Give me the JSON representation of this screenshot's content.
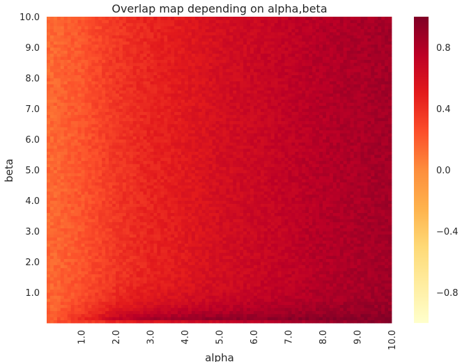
{
  "chart_data": {
    "type": "heatmap",
    "title": "Overlap map depending on alpha,beta",
    "xlabel": "alpha",
    "ylabel": "beta",
    "xlim": [
      0.0,
      10.0
    ],
    "ylim": [
      0.0,
      10.0
    ],
    "x_tick_labels": [
      "1.0",
      "2.0",
      "3.0",
      "4.0",
      "5.0",
      "6.0",
      "7.0",
      "8.0",
      "9.0",
      "10.0"
    ],
    "y_tick_labels": [
      "10.0",
      "9.0",
      "8.0",
      "7.0",
      "6.0",
      "5.0",
      "4.0",
      "3.0",
      "2.0",
      "1.0"
    ],
    "colorbar": {
      "range": [
        -1.0,
        1.0
      ],
      "tick_labels": [
        "0.8",
        "0.4",
        "0.0",
        "−0.4",
        "−0.8"
      ],
      "colormap": "YlOrRd",
      "colors": [
        "#ffffcc",
        "#ffeda0",
        "#fed976",
        "#feb24c",
        "#fd8d3c",
        "#fc4e2a",
        "#e31a1c",
        "#bd0026",
        "#800026"
      ]
    },
    "grid": false,
    "z_description": "overlap",
    "z_samples": {
      "alpha": [
        0.2,
        1.0,
        2.0,
        3.0,
        4.0,
        5.0,
        6.0,
        7.0,
        8.0,
        9.0,
        10.0
      ],
      "beta_high": [
        0.15,
        0.22,
        0.36,
        0.45,
        0.52,
        0.6,
        0.66,
        0.72,
        0.78,
        0.82,
        0.86
      ],
      "beta_low": [
        0.2,
        0.45,
        0.75,
        0.9,
        0.95,
        0.97,
        0.98,
        0.98,
        0.99,
        0.99,
        0.99
      ]
    }
  }
}
